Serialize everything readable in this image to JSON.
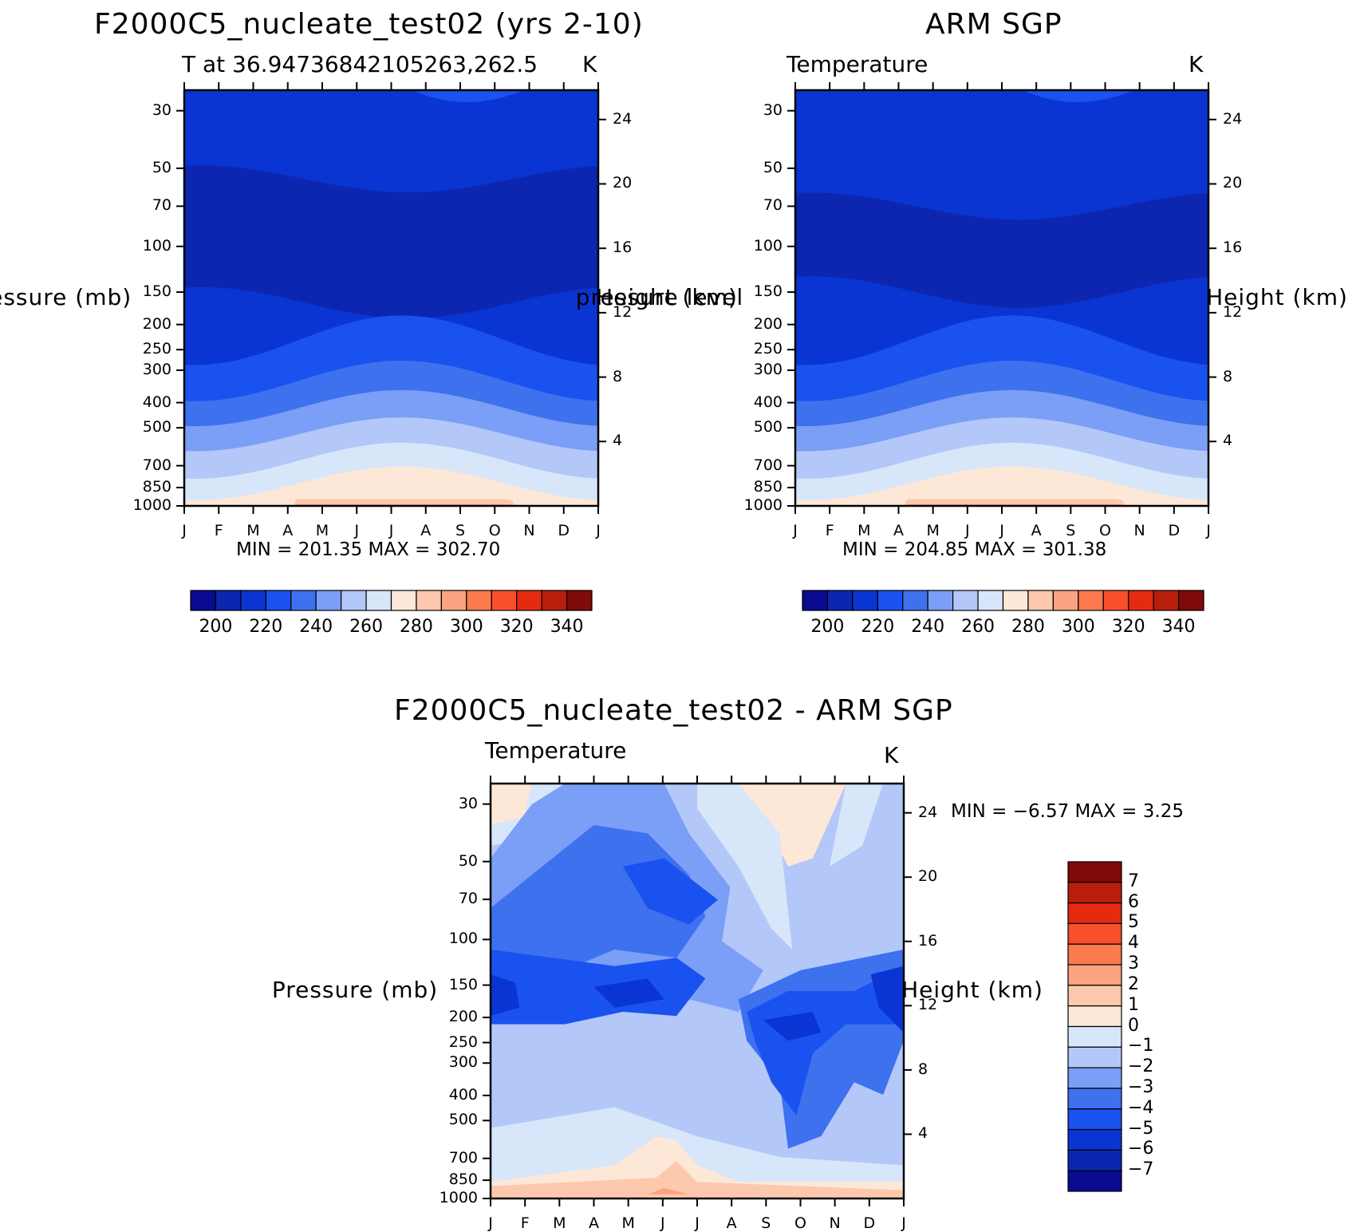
{
  "chart_data": [
    {
      "type": "heatmap",
      "title": "F2000C5_nucleate_test02 (yrs 2-10)",
      "subtitle_left": "T at 36.94736842105263,262.5",
      "subtitle_right": "K",
      "xlabel": "",
      "ylabel": "Pressure (mb)",
      "ylabel_right": "Height (km)",
      "x_ticks": [
        "J",
        "F",
        "M",
        "A",
        "M",
        "J",
        "J",
        "A",
        "S",
        "O",
        "N",
        "D",
        "J"
      ],
      "y_ticks": [
        30,
        50,
        70,
        100,
        150,
        200,
        250,
        300,
        400,
        500,
        700,
        850,
        1000
      ],
      "y_ticks_right": [
        4,
        8,
        12,
        16,
        20,
        24
      ],
      "ylim": [
        1000,
        25
      ],
      "y_scale": "log",
      "min": "201.35",
      "max": "302.70",
      "stat_text": "MIN =  201.35  MAX =  302.70",
      "colorbar": {
        "levels": [
          200,
          210,
          220,
          230,
          240,
          250,
          260,
          270,
          280,
          290,
          300,
          310,
          320,
          330,
          340
        ],
        "labels": [
          "200",
          "220",
          "240",
          "260",
          "280",
          "300",
          "320",
          "340"
        ],
        "orientation": "horizontal"
      }
    },
    {
      "type": "heatmap",
      "title": "ARM SGP",
      "subtitle_left": "Temperature",
      "subtitle_right": "K",
      "xlabel": "",
      "ylabel": "pressure level",
      "ylabel_right": "Height (km)",
      "x_ticks": [
        "J",
        "F",
        "M",
        "A",
        "M",
        "J",
        "J",
        "A",
        "S",
        "O",
        "N",
        "D",
        "J"
      ],
      "y_ticks": [
        30,
        50,
        70,
        100,
        150,
        200,
        250,
        300,
        400,
        500,
        700,
        850,
        1000
      ],
      "y_ticks_right": [
        4,
        8,
        12,
        16,
        20,
        24
      ],
      "ylim": [
        1000,
        25
      ],
      "y_scale": "log",
      "min": "204.85",
      "max": "301.38",
      "stat_text": "MIN =  204.85  MAX =  301.38",
      "colorbar": {
        "levels": [
          200,
          210,
          220,
          230,
          240,
          250,
          260,
          270,
          280,
          290,
          300,
          310,
          320,
          330,
          340
        ],
        "labels": [
          "200",
          "220",
          "240",
          "260",
          "280",
          "300",
          "320",
          "340"
        ],
        "orientation": "horizontal"
      }
    },
    {
      "type": "heatmap",
      "title": "F2000C5_nucleate_test02 - ARM SGP",
      "subtitle_left": "Temperature",
      "subtitle_right": "K",
      "xlabel": "",
      "ylabel": "Pressure (mb)",
      "ylabel_right": "Height (km)",
      "x_ticks": [
        "J",
        "F",
        "M",
        "A",
        "M",
        "J",
        "J",
        "A",
        "S",
        "O",
        "N",
        "D",
        "J"
      ],
      "y_ticks": [
        30,
        50,
        70,
        100,
        150,
        200,
        250,
        300,
        400,
        500,
        700,
        850,
        1000
      ],
      "y_ticks_right": [
        4,
        8,
        12,
        16,
        20,
        24
      ],
      "ylim": [
        1000,
        25
      ],
      "y_scale": "log",
      "min": "-6.57",
      "max": "3.25",
      "stat_text": "MIN =    −6.57  MAX =     3.25",
      "colorbar": {
        "labels": [
          "7",
          "6",
          "5",
          "4",
          "3",
          "2",
          "1",
          "0",
          "−1",
          "−2",
          "−3",
          "−4",
          "−5",
          "−6",
          "−7"
        ],
        "orientation": "vertical"
      }
    }
  ],
  "colors": {
    "temp_scale": [
      "#080a8f",
      "#0c26b0",
      "#0b35d2",
      "#1a52f0",
      "#3d71ee",
      "#7b9ef7",
      "#b3c8f9",
      "#d8e6fa",
      "#fde8d7",
      "#fdc9ae",
      "#fca382",
      "#fc7a4d",
      "#f8502d",
      "#e52a12",
      "#b71e0b",
      "#7f0a07"
    ],
    "diff_scale": [
      "#7f0a07",
      "#b71e0b",
      "#e52a12",
      "#f8502d",
      "#fc7a4d",
      "#fca382",
      "#fdc9ae",
      "#fde8d7",
      "#d8e6fa",
      "#b3c8f9",
      "#7b9ef7",
      "#3d71ee",
      "#1a52f0",
      "#0b35d2",
      "#0c26b0",
      "#080a8f"
    ]
  }
}
